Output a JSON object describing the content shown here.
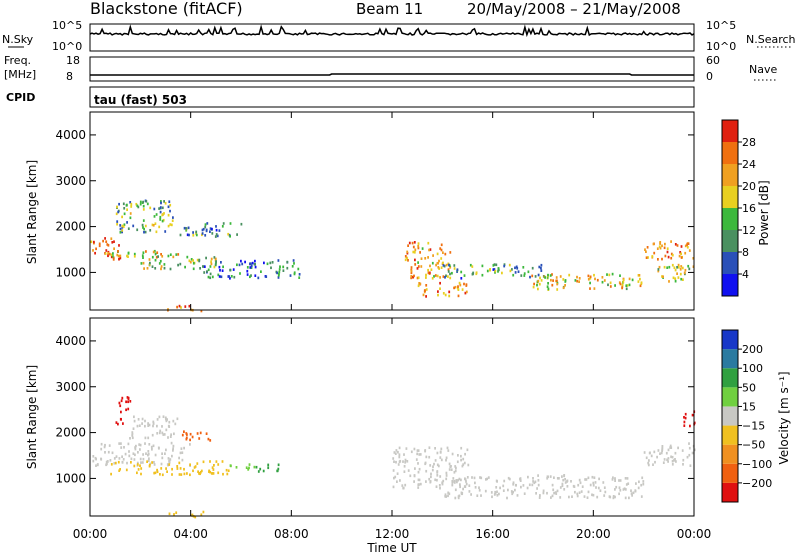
{
  "header": {
    "station": "Blackstone (fitACF)",
    "beam": "Beam 11",
    "date_range": "20/May/2008 – 21/May/2008"
  },
  "top_panels": {
    "nsky_label": "N.Sky",
    "nsearch_label": "N.Search",
    "count_ticks_left": [
      "10^5",
      "10^0"
    ],
    "count_ticks_right": [
      "10^5",
      "10^0"
    ],
    "freq_label_1": "Freq.",
    "freq_label_2": "[MHz]",
    "freq_ticks": [
      "18",
      "8"
    ],
    "nave_label": "Nave",
    "nave_ticks": [
      "60",
      "0"
    ],
    "cpid_label": "CPID",
    "cpid_value": "tau (fast) 503"
  },
  "axes": {
    "ylabel": "Slant Range [km]",
    "xlabel": "Time UT",
    "yticks": [
      "1000",
      "2000",
      "3000",
      "4000"
    ],
    "xticks": [
      "00:00",
      "04:00",
      "08:00",
      "12:00",
      "16:00",
      "20:00",
      "00:00"
    ]
  },
  "power_bar": {
    "label": "Power [dB]",
    "ticks": [
      "4",
      "8",
      "12",
      "16",
      "20",
      "24",
      "28"
    ],
    "colors": [
      "#1010f0",
      "#2a50b8",
      "#4a9060",
      "#3cb83c",
      "#e8d020",
      "#f0a020",
      "#f07010",
      "#e02010"
    ]
  },
  "velocity_bar": {
    "label": "Velocity [m s⁻¹]",
    "ticks": [
      "200",
      "100",
      "50",
      "15",
      "−15",
      "−50",
      "−100",
      "−200"
    ],
    "colors": [
      "#1838c8",
      "#2a7aa0",
      "#30a040",
      "#70d040",
      "#c8c8c4",
      "#f0c020",
      "#f09020",
      "#f06010",
      "#e01010"
    ]
  },
  "chart_data": {
    "type": "heatmap",
    "x_unit": "hours UT",
    "xlim": [
      0,
      24
    ],
    "ylim": [
      180,
      4500
    ],
    "power_clusters": [
      {
        "t0": 0.0,
        "t1": 1.2,
        "r0": 1300,
        "r1": 1800,
        "level": 0.85
      },
      {
        "t0": 0.8,
        "t1": 3.5,
        "r0": 1350,
        "r1": 1500,
        "level": 0.6
      },
      {
        "t0": 1.0,
        "t1": 3.3,
        "r0": 1900,
        "r1": 2600,
        "level": 0.4
      },
      {
        "t0": 2.0,
        "t1": 5.0,
        "r0": 1100,
        "r1": 1400,
        "level": 0.5
      },
      {
        "t0": 3.5,
        "t1": 6.0,
        "r0": 1800,
        "r1": 2100,
        "level": 0.3
      },
      {
        "t0": 4.5,
        "t1": 8.3,
        "r0": 900,
        "r1": 1300,
        "level": 0.25
      },
      {
        "t0": 3.0,
        "t1": 4.5,
        "r0": 180,
        "r1": 300,
        "level": 0.7
      },
      {
        "t0": 12.5,
        "t1": 14.3,
        "r0": 900,
        "r1": 1700,
        "level": 0.7
      },
      {
        "t0": 13.0,
        "t1": 15.0,
        "r0": 500,
        "r1": 800,
        "level": 0.75
      },
      {
        "t0": 14.0,
        "t1": 18.0,
        "r0": 900,
        "r1": 1200,
        "level": 0.35
      },
      {
        "t0": 17.5,
        "t1": 22.0,
        "r0": 650,
        "r1": 1000,
        "level": 0.6
      },
      {
        "t0": 22.0,
        "t1": 24.0,
        "r0": 1300,
        "r1": 1700,
        "level": 0.75
      },
      {
        "t0": 22.5,
        "t1": 24.0,
        "r0": 800,
        "r1": 1200,
        "level": 0.5
      }
    ],
    "velocity_clusters": [
      {
        "t0": 0.0,
        "t1": 4.0,
        "r0": 1300,
        "r1": 1800,
        "color": "#c8c8c4"
      },
      {
        "t0": 1.0,
        "t1": 1.6,
        "r0": 2200,
        "r1": 2800,
        "color": "#e01010"
      },
      {
        "t0": 1.5,
        "t1": 3.5,
        "r0": 1900,
        "r1": 2400,
        "color": "#c8c8c4"
      },
      {
        "t0": 3.5,
        "t1": 5.0,
        "r0": 1850,
        "r1": 2050,
        "color": "#f06010"
      },
      {
        "t0": 0.8,
        "t1": 5.5,
        "r0": 1100,
        "r1": 1400,
        "color": "#f0c020"
      },
      {
        "t0": 5.5,
        "t1": 6.5,
        "r0": 1200,
        "r1": 1350,
        "color": "#70d040"
      },
      {
        "t0": 6.5,
        "t1": 7.5,
        "r0": 1150,
        "r1": 1350,
        "color": "#30a040"
      },
      {
        "t0": 3.0,
        "t1": 4.5,
        "r0": 180,
        "r1": 300,
        "color": "#f0c020"
      },
      {
        "t0": 12.0,
        "t1": 15.0,
        "r0": 800,
        "r1": 1700,
        "color": "#c8c8c4"
      },
      {
        "t0": 14.0,
        "t1": 22.0,
        "r0": 600,
        "r1": 1100,
        "color": "#c8c8c4"
      },
      {
        "t0": 22.0,
        "t1": 24.0,
        "r0": 1300,
        "r1": 1800,
        "color": "#c8c8c4"
      },
      {
        "t0": 23.5,
        "t1": 24.0,
        "r0": 2100,
        "r1": 2500,
        "color": "#e01010"
      }
    ]
  }
}
